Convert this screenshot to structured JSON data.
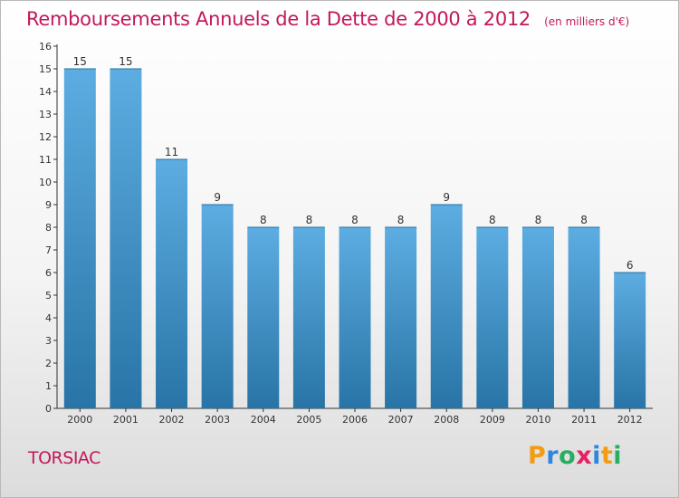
{
  "header": {
    "title": "Remboursements Annuels de la Dette de 2000 à 2012",
    "unit": "(en milliers d'€)"
  },
  "footer": {
    "town": "TORSIAC",
    "brand_letters": [
      "P",
      "r",
      "o",
      "x",
      "i",
      "t",
      "i"
    ],
    "brand_colors": [
      "#f39c12",
      "#2e86de",
      "#27ae60",
      "#e91e63",
      "#2e86de",
      "#f39c12",
      "#27ae60"
    ]
  },
  "colors": {
    "bar_top": "#5dade2",
    "bar_bottom": "#2874a6",
    "title": "#c2185b"
  },
  "chart_data": {
    "type": "bar",
    "categories": [
      "2000",
      "2001",
      "2002",
      "2003",
      "2004",
      "2005",
      "2006",
      "2007",
      "2008",
      "2009",
      "2010",
      "2011",
      "2012"
    ],
    "values": [
      15,
      15,
      11,
      9,
      8,
      8,
      8,
      8,
      9,
      8,
      8,
      8,
      6
    ],
    "title": "Remboursements Annuels de la Dette de 2000 à 2012",
    "xlabel": "",
    "ylabel": "",
    "ylim": [
      0,
      16
    ],
    "yticks": [
      0,
      1,
      2,
      3,
      4,
      5,
      6,
      7,
      8,
      9,
      10,
      11,
      12,
      13,
      14,
      15,
      16
    ],
    "grid": false,
    "legend": "none"
  }
}
